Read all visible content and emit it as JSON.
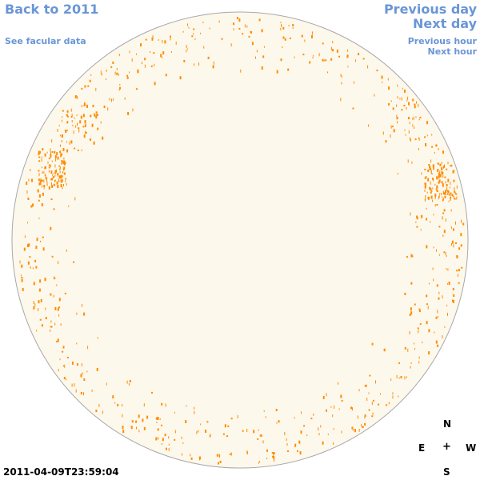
{
  "nav": {
    "back": "Back to 2011",
    "facular": "See facular data",
    "previous_day": "Previous day",
    "next_day": "Next day",
    "previous_hour": "Previous hour",
    "next_hour": "Next hour"
  },
  "compass": {
    "north": "N",
    "east": "E",
    "center": "+",
    "west": "W",
    "south": "S"
  },
  "timestamp": "2011-04-09T23:59:04",
  "colors": {
    "disk_fill": "#fdf8ec",
    "disk_stroke": "#a8a8a8",
    "feature": "#ff8c00",
    "link": "#6a96d6"
  }
}
